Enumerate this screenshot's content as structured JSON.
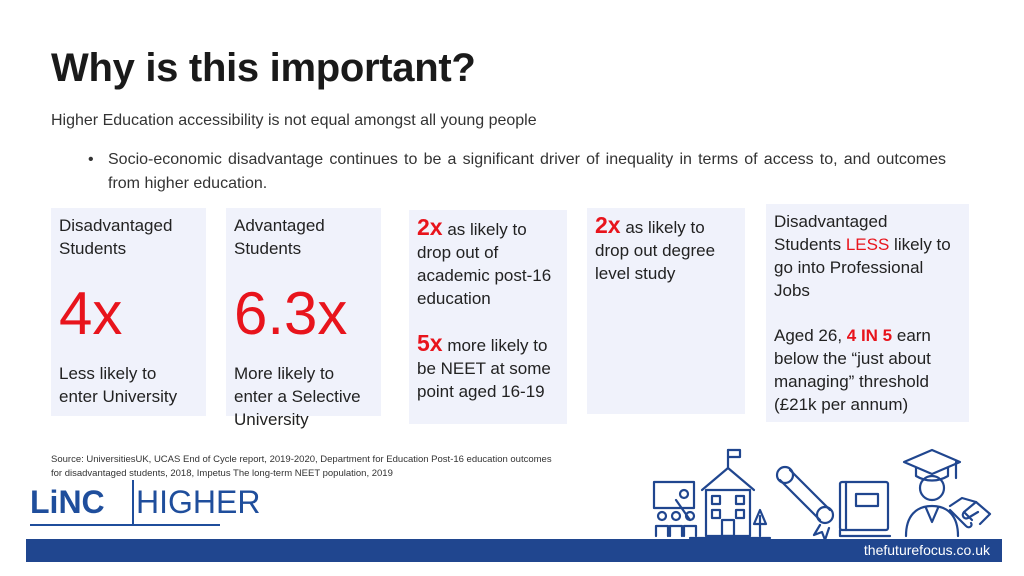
{
  "title": "Why is this important?",
  "subtitle": "Higher Education accessibility is not equal amongst all young people",
  "bullet": {
    "symbol": "•",
    "text": "Socio-economic disadvantage continues to be a significant driver of inequality in terms of access to, and outcomes from higher education."
  },
  "cards": {
    "c1": {
      "heading_l1": "Disadvantaged",
      "heading_l2": "Students",
      "big": "4x",
      "foot_l1": "Less likely to",
      "foot_l2": "enter University"
    },
    "c2": {
      "heading_l1": "Advantaged",
      "heading_l2": "Students",
      "big": "6.3x",
      "foot_l1": "More likely to",
      "foot_l2": "enter a Selective",
      "foot_l3": "University"
    },
    "c3": {
      "a_num": "2x",
      "a_l1": " as likely to",
      "a_l2": "drop out of",
      "a_l3": "academic post-16",
      "a_l4": "education",
      "b_num": "5x",
      "b_l1": " more likely to",
      "b_l2": "be NEET at some",
      "b_l3": "point aged 16-19"
    },
    "c4": {
      "num": "2x",
      "l1": " as likely to",
      "l2": "drop out degree",
      "l3": "level study"
    },
    "c5": {
      "l1": "Disadvantaged",
      "l2_pre": "Students ",
      "l2_red": "LESS",
      "l2_post": " likely to",
      "l3": "go into Professional",
      "l4": "Jobs",
      "l5_pre": "Aged 26, ",
      "l5_red": "4 IN 5",
      "l5_post": " earn",
      "l6": "below the “just about",
      "l7": "managing” threshold",
      "l8": "(£21k per annum)"
    }
  },
  "source": {
    "line1": "Source: UniversitiesUK, UCAS End of Cycle report, 2019-2020, Department for Education Post-16 education outcomes",
    "line2": "for disadvantaged students, 2018,  Impetus The long-term NEET population, 2019"
  },
  "logo": {
    "part1": "LiNC",
    "part2": "HIGHER"
  },
  "footer": {
    "url": "thefuturefocus.co.uk"
  },
  "colors": {
    "accent_red": "#e8141c",
    "brand_blue": "#20468f",
    "card_bg": "#f0f2fb"
  },
  "icons": [
    "school-building-icon",
    "teacher-board-icon",
    "diploma-scroll-icon",
    "book-stack-icon",
    "graduate-icon",
    "handshake-icon"
  ]
}
